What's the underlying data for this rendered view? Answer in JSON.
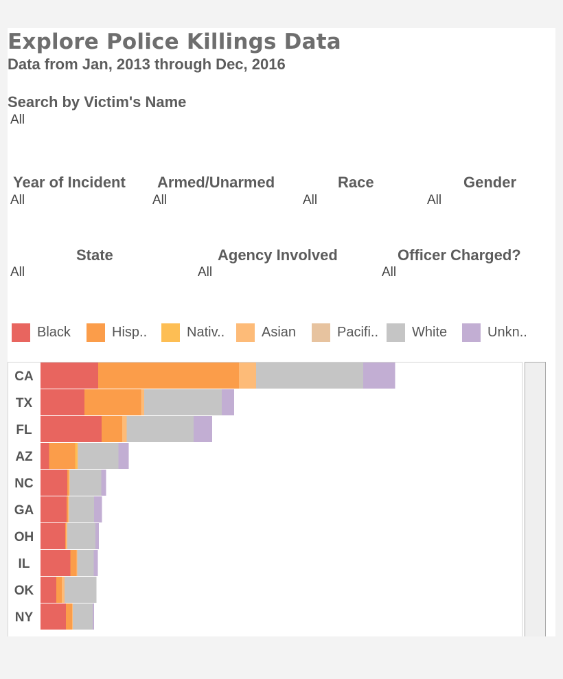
{
  "header": {
    "title": "Explore Police Killings Data",
    "subtitle": "Data from Jan, 2013 through Dec, 2016"
  },
  "filters": {
    "victim_name": {
      "label": "Search by Victim's Name",
      "value": "All"
    },
    "year": {
      "label": "Year of Incident",
      "value": "All"
    },
    "armed": {
      "label": "Armed/Unarmed",
      "value": "All"
    },
    "race": {
      "label": "Race",
      "value": "All"
    },
    "gender": {
      "label": "Gender",
      "value": "All"
    },
    "state": {
      "label": "State",
      "value": "All"
    },
    "agency": {
      "label": "Agency Involved",
      "value": "All"
    },
    "charged": {
      "label": "Officer Charged?",
      "value": "All"
    }
  },
  "legend": [
    {
      "label": "Black",
      "color": "#e8655f"
    },
    {
      "label": "Hisp..",
      "color": "#fb9d4a"
    },
    {
      "label": "Nativ..",
      "color": "#fdbe54"
    },
    {
      "label": "Asian",
      "color": "#fdbb78"
    },
    {
      "label": "Pacifi..",
      "color": "#e7c39f"
    },
    {
      "label": "White",
      "color": "#c5c5c5"
    },
    {
      "label": "Unkn..",
      "color": "#c2aed3"
    }
  ],
  "chart_data": {
    "type": "bar",
    "orientation": "horizontal",
    "stacked": true,
    "categories": [
      "CA",
      "TX",
      "FL",
      "AZ",
      "NC",
      "GA",
      "OH",
      "IL",
      "OK",
      "NY"
    ],
    "series": [
      {
        "name": "Black",
        "color": "#e8655f",
        "values": [
          168,
          128,
          178,
          25,
          78,
          76,
          72,
          87,
          46,
          74
        ]
      },
      {
        "name": "Hisp..",
        "color": "#fb9d4a",
        "values": [
          410,
          165,
          60,
          76,
          4,
          4,
          2,
          18,
          16,
          18
        ]
      },
      {
        "name": "Nativ..",
        "color": "#fdbe54",
        "values": [
          0,
          0,
          0,
          6,
          0,
          0,
          0,
          0,
          0,
          0
        ]
      },
      {
        "name": "Asian",
        "color": "#fdbb78",
        "values": [
          50,
          9,
          13,
          2,
          3,
          3,
          4,
          2,
          8,
          2
        ]
      },
      {
        "name": "Pacifi..",
        "color": "#e7c39f",
        "values": [
          0,
          0,
          0,
          0,
          0,
          0,
          0,
          0,
          0,
          0
        ]
      },
      {
        "name": "White",
        "color": "#c5c5c5",
        "values": [
          312,
          226,
          195,
          118,
          92,
          73,
          82,
          48,
          93,
          58
        ]
      },
      {
        "name": "Unkn..",
        "color": "#c2aed3",
        "values": [
          93,
          36,
          54,
          30,
          14,
          23,
          10,
          12,
          0,
          4
        ]
      }
    ],
    "grid": false,
    "legend_position": "top"
  }
}
